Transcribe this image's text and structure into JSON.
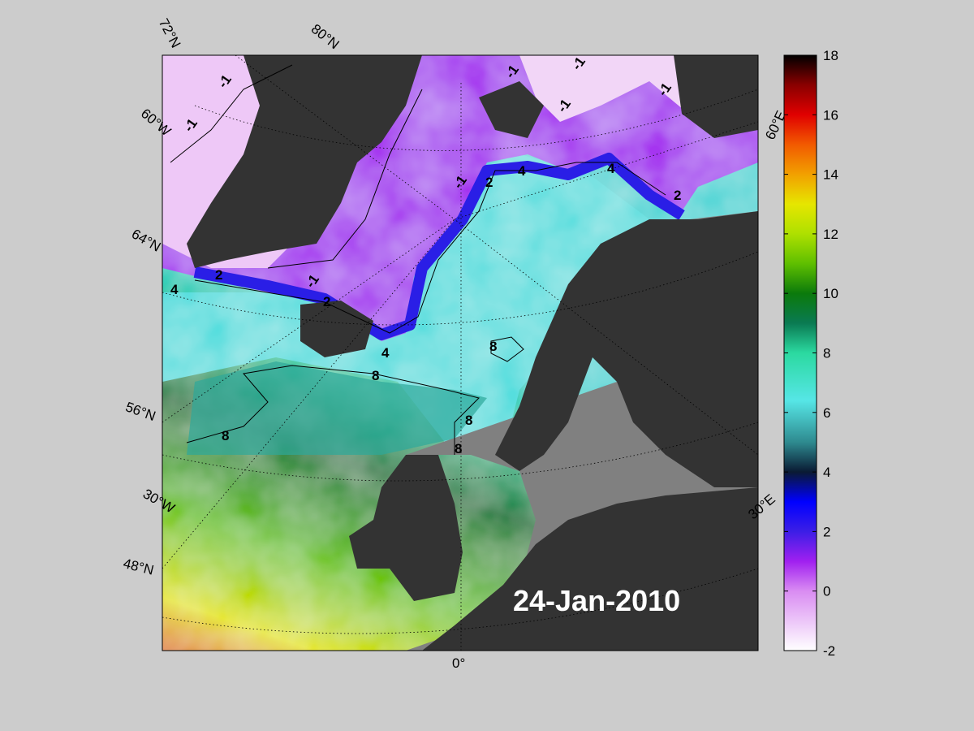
{
  "map": {
    "date": "24-Jan-2010",
    "lat_labels": [
      "72°N",
      "80°N",
      "64°N",
      "56°N",
      "48°N"
    ],
    "lon_labels": [
      "60°W",
      "30°W",
      "0°",
      "30°E",
      "60°E"
    ],
    "contour_labels": [
      "-1",
      "-1",
      "-1",
      "-1",
      "-1",
      "-1",
      "-1",
      "-1",
      "2",
      "2",
      "2",
      "2",
      "4",
      "4",
      "4",
      "4",
      "8",
      "8",
      "8",
      "8",
      "8",
      "8"
    ]
  },
  "colorbar": {
    "ticks": [
      "18",
      "16",
      "14",
      "12",
      "10",
      "8",
      "6",
      "4",
      "2",
      "0",
      "-2"
    ],
    "range": [
      -2,
      18
    ],
    "colors": {
      "c_m2": "#ffffff",
      "c_0": "#d98cf2",
      "c_1": "#a020f0",
      "c_2": "#3c1ee6",
      "c_3": "#0000ff",
      "c_4": "#0a1a33",
      "c_5": "#2e8a8f",
      "c_6": "#56e6e6",
      "c_8": "#2bd9a0",
      "c_9": "#0a7a52",
      "c_10": "#0b7a0b",
      "c_11": "#5fbf00",
      "c_12": "#aee000",
      "c_13": "#e6e600",
      "c_14": "#f2a000",
      "c_15": "#f25a00",
      "c_16": "#e00000",
      "c_17": "#8a0000",
      "c_18": "#000000"
    }
  },
  "colors": {
    "background": "#cccccc",
    "land": "#333333",
    "shelf": "#808080"
  }
}
